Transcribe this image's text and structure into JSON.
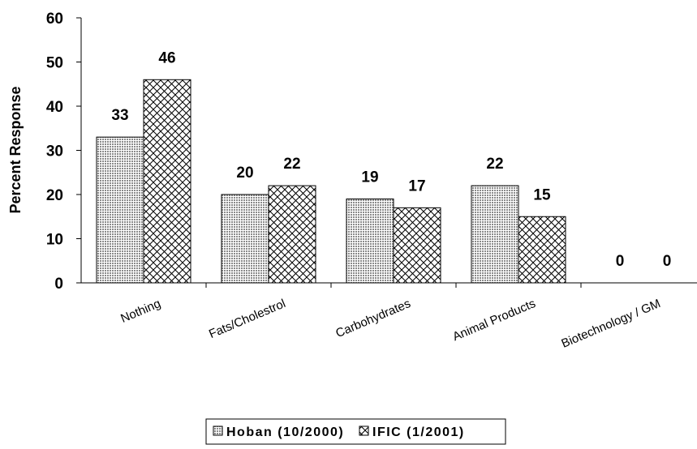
{
  "chart_data": {
    "type": "bar",
    "title": "",
    "xlabel": "",
    "ylabel": "Percent Response",
    "ylim": [
      0,
      60
    ],
    "yticks": [
      0,
      10,
      20,
      30,
      40,
      50,
      60
    ],
    "categories": [
      "Nothing",
      "Fats/Cholestrol",
      "Carbohydrates",
      "Animal Products",
      "Biotechnology / GM"
    ],
    "series": [
      {
        "name": "Hoban (10/2000)",
        "values": [
          33,
          20,
          19,
          22,
          0
        ],
        "pattern": "dots"
      },
      {
        "name": "IFIC (1/2001)",
        "values": [
          46,
          22,
          17,
          15,
          0
        ],
        "pattern": "crosshatch"
      }
    ],
    "legend_position": "bottom",
    "grid": false
  }
}
